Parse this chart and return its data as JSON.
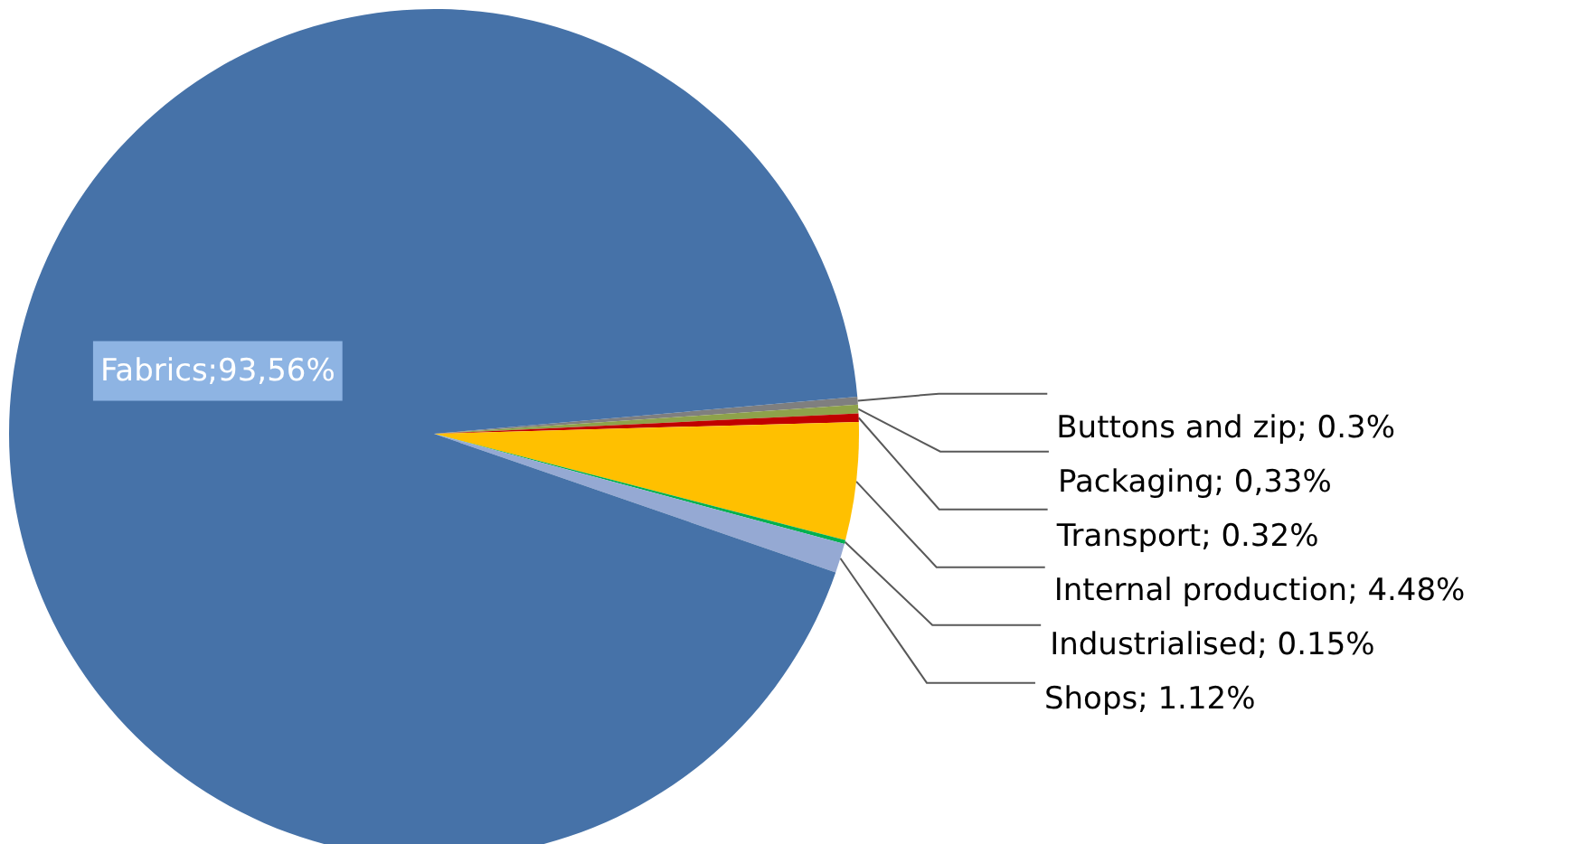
{
  "chart_data": {
    "type": "pie",
    "categories": [
      "Buttons and zip",
      "Packaging",
      "Transport",
      "Internal production",
      "Industrialised",
      "Shops",
      "Fabrics"
    ],
    "values": [
      0.3,
      0.33,
      0.32,
      4.48,
      0.15,
      1.12,
      93.56
    ],
    "value_labels": [
      "0.3%",
      "0,33%",
      "0.32%",
      "4.48%",
      "0.15%",
      "1.12%",
      "93,56%"
    ],
    "colors": [
      "#7f7f7f",
      "#8ea24a",
      "#c00000",
      "#ffc000",
      "#00b050",
      "#95a9d3",
      "#4672a8"
    ],
    "legend": false
  }
}
